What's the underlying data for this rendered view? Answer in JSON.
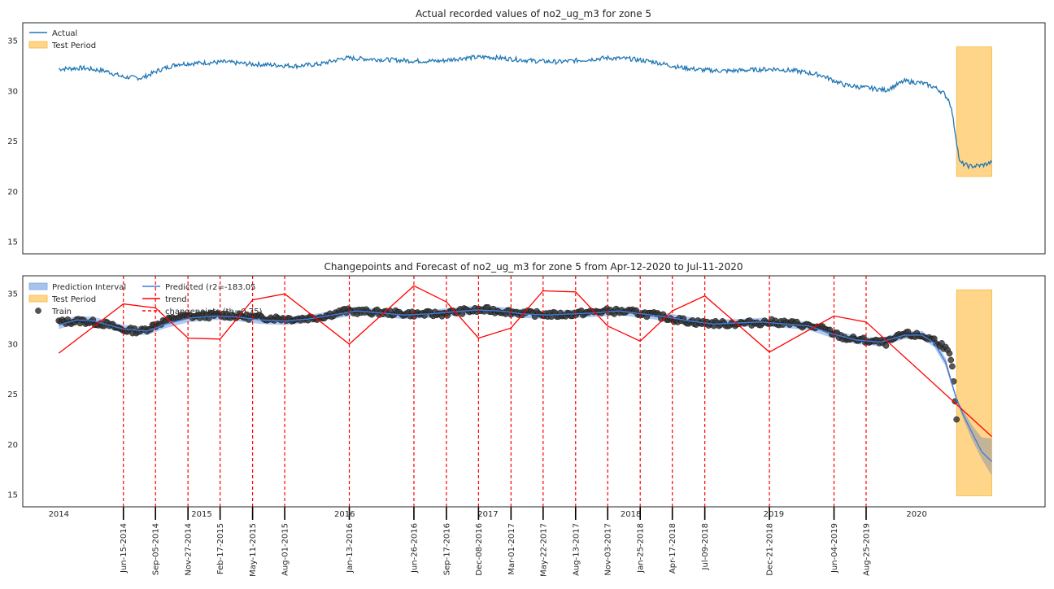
{
  "chart_data": [
    {
      "type": "line",
      "title": "Actual recorded values of no2_ug_m3 for zone 5",
      "ylim": [
        13.8,
        36.8
      ],
      "xlim": [
        "2013-10-01",
        "2020-11-24"
      ],
      "y_ticks": [
        "15",
        "20",
        "25",
        "30",
        "35"
      ],
      "x_ticks_visible": false,
      "grid": false,
      "legend": {
        "position": "top-left",
        "entries": [
          "Actual",
          "Test Period"
        ]
      },
      "colors": {
        "actual": "#1f77b4",
        "test_period_fill": "#ffd58a",
        "test_period_edge": "#f5b83d"
      },
      "series": [
        {
          "name": "Actual",
          "x": [
            "2014-01-01",
            "2014-03-01",
            "2014-05-01",
            "2014-06-15",
            "2014-08-01",
            "2014-09-15",
            "2014-11-01",
            "2015-01-01",
            "2015-03-01",
            "2015-05-01",
            "2015-07-01",
            "2015-09-01",
            "2015-11-01",
            "2016-01-01",
            "2016-03-01",
            "2016-05-01",
            "2016-07-01",
            "2016-09-01",
            "2016-11-01",
            "2017-01-01",
            "2017-03-01",
            "2017-05-01",
            "2017-07-01",
            "2017-09-01",
            "2017-11-01",
            "2018-01-01",
            "2018-03-01",
            "2018-05-01",
            "2018-07-01",
            "2018-09-01",
            "2018-11-01",
            "2019-01-01",
            "2019-03-01",
            "2019-05-01",
            "2019-07-01",
            "2019-09-01",
            "2019-10-15",
            "2019-12-01",
            "2020-01-15",
            "2020-02-15",
            "2020-03-10",
            "2020-03-25",
            "2020-04-01",
            "2020-04-20",
            "2020-05-15",
            "2020-06-15",
            "2020-07-11"
          ],
          "values": [
            32.2,
            32.3,
            32.0,
            31.4,
            31.3,
            32.1,
            32.7,
            32.8,
            32.9,
            32.7,
            32.6,
            32.5,
            32.7,
            33.3,
            33.2,
            33.1,
            33.0,
            33.0,
            33.3,
            33.4,
            33.2,
            33.0,
            32.9,
            33.1,
            33.3,
            33.2,
            32.9,
            32.4,
            32.1,
            32.0,
            32.1,
            32.2,
            32.0,
            31.6,
            30.6,
            30.3,
            30.1,
            31.0,
            30.8,
            30.4,
            29.8,
            29.0,
            27.8,
            22.9,
            22.5,
            22.6,
            22.9
          ]
        }
      ],
      "test_period": {
        "start": "2020-04-12",
        "end": "2020-07-11",
        "ymin": 21.5,
        "ymax": 34.4
      }
    },
    {
      "type": "line",
      "title": "Changepoints and Forecast of no2_ug_m3 for zone 5 from Apr-12-2020 to Jul-11-2020",
      "ylim": [
        13.8,
        36.8
      ],
      "xlim": [
        "2013-10-01",
        "2020-11-24"
      ],
      "y_ticks": [
        "15",
        "20",
        "25",
        "30",
        "35"
      ],
      "x_tick_labels": [
        {
          "label": "2014",
          "date": "2014-01-01"
        },
        {
          "label": "2015",
          "date": "2015-01-01"
        },
        {
          "label": "2016",
          "date": "2016-01-01"
        },
        {
          "label": "2017",
          "date": "2017-01-01"
        },
        {
          "label": "2018",
          "date": "2018-01-01"
        },
        {
          "label": "2019",
          "date": "2019-01-01"
        },
        {
          "label": "2020",
          "date": "2020-01-01"
        }
      ],
      "grid": false,
      "legend": {
        "position": "top-left",
        "entries": [
          "Prediction Interval",
          "Test Period",
          "Train",
          "Predicted (r2=-183.05",
          "trend",
          "changepoints (th=0.75)"
        ]
      },
      "colors": {
        "train": "#000000",
        "predicted": "#3d7ee0",
        "interval": "#a8c2ee",
        "trend": "#ff0000",
        "changepoint": "#ff0000",
        "test_period_fill": "#ffd58a",
        "test_period_edge": "#f5b83d",
        "forecast_interval": "#c8b28a"
      },
      "changepoints": [
        {
          "label": "Jun-15-2014",
          "date": "2014-06-15"
        },
        {
          "label": "Sep-05-2014",
          "date": "2014-09-05"
        },
        {
          "label": "Nov-27-2014",
          "date": "2014-11-27"
        },
        {
          "label": "Feb-17-2015",
          "date": "2015-02-17"
        },
        {
          "label": "May-11-2015",
          "date": "2015-05-11"
        },
        {
          "label": "Aug-01-2015",
          "date": "2015-08-01"
        },
        {
          "label": "Jan-13-2016",
          "date": "2016-01-13"
        },
        {
          "label": "Jun-26-2016",
          "date": "2016-06-26"
        },
        {
          "label": "Sep-17-2016",
          "date": "2016-09-17"
        },
        {
          "label": "Dec-08-2016",
          "date": "2016-12-08"
        },
        {
          "label": "Mar-01-2017",
          "date": "2017-03-01"
        },
        {
          "label": "May-22-2017",
          "date": "2017-05-22"
        },
        {
          "label": "Aug-13-2017",
          "date": "2017-08-13"
        },
        {
          "label": "Nov-03-2017",
          "date": "2017-11-03"
        },
        {
          "label": "Jan-25-2018",
          "date": "2018-01-25"
        },
        {
          "label": "Apr-17-2018",
          "date": "2018-04-17"
        },
        {
          "label": "Jul-09-2018",
          "date": "2018-07-09"
        },
        {
          "label": "Dec-21-2018",
          "date": "2018-12-21"
        },
        {
          "label": "Jun-04-2019",
          "date": "2019-06-04"
        },
        {
          "label": "Aug-25-2019",
          "date": "2019-08-25"
        }
      ],
      "series": [
        {
          "name": "trend",
          "x": [
            "2014-01-01",
            "2014-06-15",
            "2014-09-05",
            "2014-11-27",
            "2015-02-17",
            "2015-05-11",
            "2015-08-01",
            "2016-01-13",
            "2016-06-26",
            "2016-09-17",
            "2016-12-08",
            "2017-03-01",
            "2017-05-22",
            "2017-08-13",
            "2017-11-03",
            "2018-01-25",
            "2018-04-17",
            "2018-07-09",
            "2018-12-21",
            "2019-06-04",
            "2019-08-25",
            "2020-07-11"
          ],
          "values": [
            29.1,
            34.0,
            33.6,
            30.6,
            30.5,
            34.4,
            35.0,
            30.0,
            35.8,
            34.2,
            30.6,
            31.6,
            35.3,
            35.2,
            31.8,
            30.3,
            33.3,
            34.8,
            29.2,
            32.8,
            32.2,
            20.8
          ]
        },
        {
          "name": "Predicted (r2=-183.05",
          "x": [
            "2014-01-01",
            "2014-02-15",
            "2014-04-01",
            "2014-06-15",
            "2014-08-15",
            "2014-10-01",
            "2014-12-01",
            "2015-02-01",
            "2015-04-01",
            "2015-06-01",
            "2015-08-01",
            "2015-10-01",
            "2015-12-01",
            "2016-02-01",
            "2016-04-01",
            "2016-06-01",
            "2016-08-01",
            "2016-10-01",
            "2016-12-01",
            "2017-02-01",
            "2017-04-01",
            "2017-06-01",
            "2017-08-01",
            "2017-10-01",
            "2017-12-01",
            "2018-02-01",
            "2018-04-01",
            "2018-06-01",
            "2018-08-01",
            "2018-10-01",
            "2018-12-01",
            "2019-02-01",
            "2019-04-01",
            "2019-06-01",
            "2019-08-01",
            "2019-10-01",
            "2019-12-01",
            "2020-01-15",
            "2020-02-15",
            "2020-03-15",
            "2020-04-12",
            "2020-05-01",
            "2020-05-20",
            "2020-06-15",
            "2020-07-11"
          ],
          "values": [
            31.9,
            32.4,
            32.3,
            31.5,
            31.3,
            32.0,
            32.6,
            32.8,
            32.7,
            32.4,
            32.3,
            32.5,
            32.9,
            33.3,
            33.1,
            32.9,
            33.0,
            33.2,
            33.4,
            33.3,
            33.0,
            32.9,
            33.0,
            33.1,
            33.3,
            33.0,
            32.7,
            32.3,
            32.0,
            32.1,
            32.2,
            32.0,
            31.8,
            31.0,
            30.4,
            30.2,
            30.9,
            30.9,
            30.1,
            28.2,
            24.5,
            22.8,
            21.3,
            19.3,
            18.3
          ]
        },
        {
          "name": "Prediction Interval",
          "half_width": 0.4,
          "forecast_lower": [
            24.4,
            22.4,
            20.6,
            18.6,
            16.9
          ],
          "forecast_upper": [
            24.6,
            23.3,
            22.0,
            20.7,
            20.6
          ]
        },
        {
          "name": "Train",
          "x": [
            "2014-01-01",
            "2014-03-01",
            "2014-05-01",
            "2014-06-15",
            "2014-08-01",
            "2014-09-15",
            "2014-11-01",
            "2015-01-01",
            "2015-03-01",
            "2015-05-01",
            "2015-07-01",
            "2015-09-01",
            "2015-11-01",
            "2016-01-01",
            "2016-03-01",
            "2016-05-01",
            "2016-07-01",
            "2016-09-01",
            "2016-11-01",
            "2017-01-01",
            "2017-03-01",
            "2017-05-01",
            "2017-07-01",
            "2017-09-01",
            "2017-11-01",
            "2018-01-01",
            "2018-03-01",
            "2018-05-01",
            "2018-07-01",
            "2018-09-01",
            "2018-11-01",
            "2019-01-01",
            "2019-03-01",
            "2019-05-01",
            "2019-07-01",
            "2019-09-01",
            "2019-10-15",
            "2019-12-01",
            "2020-01-15",
            "2020-02-15",
            "2020-03-10",
            "2020-03-25",
            "2020-04-01",
            "2020-04-08",
            "2020-04-12"
          ],
          "values": [
            32.2,
            32.3,
            32.0,
            31.4,
            31.3,
            32.1,
            32.7,
            32.8,
            32.9,
            32.7,
            32.6,
            32.5,
            32.7,
            33.3,
            33.2,
            33.1,
            33.0,
            33.0,
            33.3,
            33.4,
            33.2,
            33.0,
            32.9,
            33.1,
            33.3,
            33.2,
            32.9,
            32.4,
            32.1,
            32.0,
            32.1,
            32.2,
            32.0,
            31.6,
            30.6,
            30.3,
            30.1,
            31.0,
            30.8,
            30.4,
            29.8,
            28.9,
            27.6,
            24.5,
            22.5
          ]
        }
      ],
      "test_period": {
        "start": "2020-04-12",
        "end": "2020-07-11",
        "ymin": 14.9,
        "ymax": 35.4
      }
    }
  ]
}
